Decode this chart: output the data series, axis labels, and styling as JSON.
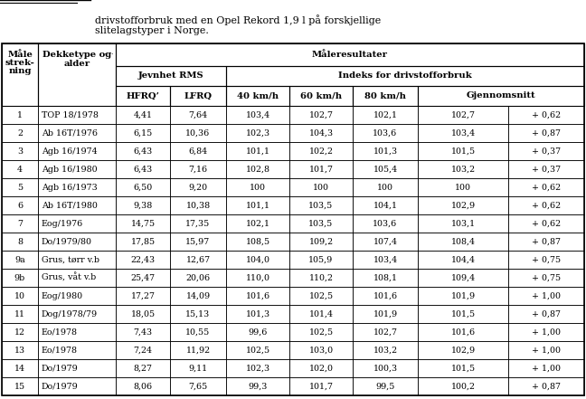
{
  "title_line1": "drivstofforbruk med en Opel Rekord 1,9 l på forskjellige",
  "title_line2": "slitelagstyper i Norge.",
  "rows": [
    [
      "1",
      "TOP 18/1978",
      "4,41",
      "7,64",
      "103,4",
      "102,7",
      "102,1",
      "102,7",
      "+ 0,62"
    ],
    [
      "2",
      "Ab 16T/1976",
      "6,15",
      "10,36",
      "102,3",
      "104,3",
      "103,6",
      "103,4",
      "+ 0,87"
    ],
    [
      "3",
      "Agb 16/1974",
      "6,43",
      "6,84",
      "101,1",
      "102,2",
      "101,3",
      "101,5",
      "+ 0,37"
    ],
    [
      "4",
      "Agb 16/1980",
      "6,43",
      "7,16",
      "102,8",
      "101,7",
      "105,4",
      "103,2",
      "+ 0,37"
    ],
    [
      "5",
      "Agb 16/1973",
      "6,50",
      "9,20",
      "100",
      "100",
      "100",
      "100",
      "+ 0,62"
    ],
    [
      "6",
      "Ab 16T/1980",
      "9,38",
      "10,38",
      "101,1",
      "103,5",
      "104,1",
      "102,9",
      "+ 0,62"
    ],
    [
      "7",
      "Eog/1976",
      "14,75",
      "17,35",
      "102,1",
      "103,5",
      "103,6",
      "103,1",
      "+ 0,62"
    ],
    [
      "8",
      "Do/1979/80",
      "17,85",
      "15,97",
      "108,5",
      "109,2",
      "107,4",
      "108,4",
      "+ 0,87"
    ],
    [
      "9a",
      "Grus, tørr v.b",
      "22,43",
      "12,67",
      "104,0",
      "105,9",
      "103,4",
      "104,4",
      "+ 0,75"
    ],
    [
      "9b",
      "Grus, våt v.b",
      "25,47",
      "20,06",
      "110,0",
      "110,2",
      "108,1",
      "109,4",
      "+ 0,75"
    ],
    [
      "10",
      "Eog/1980",
      "17,27",
      "14,09",
      "101,6",
      "102,5",
      "101,6",
      "101,9",
      "+ 1,00"
    ],
    [
      "11",
      "Dog/1978/79",
      "18,05",
      "15,13",
      "101,3",
      "101,4",
      "101,9",
      "101,5",
      "+ 0,87"
    ],
    [
      "12",
      "Eo/1978",
      "7,43",
      "10,55",
      "99,6",
      "102,5",
      "102,7",
      "101,6",
      "+ 1,00"
    ],
    [
      "13",
      "Eo/1978",
      "7,24",
      "11,92",
      "102,5",
      "103,0",
      "103,2",
      "102,9",
      "+ 1,00"
    ],
    [
      "14",
      "Do/1979",
      "8,27",
      "9,11",
      "102,3",
      "102,0",
      "100,3",
      "101,5",
      "+ 1,00"
    ],
    [
      "15",
      "Do/1979",
      "8,06",
      "7,65",
      "99,3",
      "101,7",
      "99,5",
      "100,2",
      "+ 0,87"
    ]
  ],
  "bg_color": "#ffffff",
  "text_color": "#000000",
  "border_color": "#000000",
  "font_size": 6.8,
  "header_font_size": 7.2,
  "title_font_size": 8.0
}
